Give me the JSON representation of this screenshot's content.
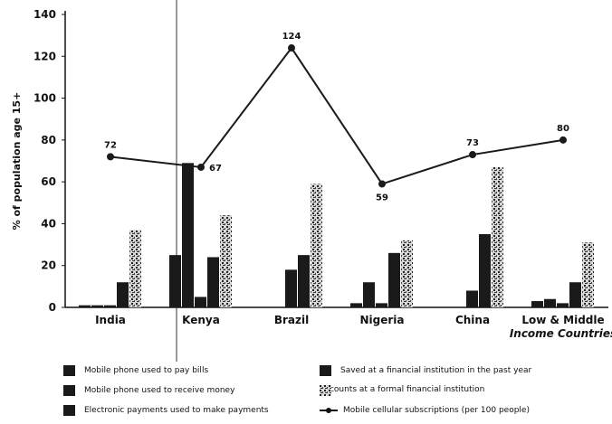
{
  "chart_data": {
    "type": "bar",
    "ylabel": "% of population age 15+",
    "ylim": [
      0,
      140
    ],
    "yticks": [
      0,
      20,
      40,
      60,
      80,
      100,
      120,
      140
    ],
    "grid": false,
    "categories": [
      "India",
      "Kenya",
      "Brazil",
      "Nigeria",
      "China",
      "Low & Middle\nIncome Countries"
    ],
    "series": [
      {
        "name": "Mobile phone used to pay bills",
        "kind": "bar",
        "color": "#1a1a1a",
        "values": [
          1,
          25,
          0,
          2,
          0,
          3
        ]
      },
      {
        "name": "Mobile phone used to receive money",
        "kind": "bar",
        "color": "#1a1a1a",
        "values": [
          1,
          69,
          0,
          12,
          0,
          4
        ]
      },
      {
        "name": "Electronic payments used to make payments",
        "kind": "bar",
        "color": "#1a1a1a",
        "values": [
          1,
          5,
          18,
          2,
          8,
          2
        ]
      },
      {
        "name": "Saved at a financial institution in the past year",
        "kind": "bar",
        "color": "#1a1a1a",
        "values": [
          12,
          24,
          25,
          26,
          35,
          12
        ]
      },
      {
        "name": "Accounts at a formal financial institution",
        "kind": "bar",
        "color": "#9a9a9a",
        "pattern": "speckle",
        "values": [
          37,
          44,
          59,
          32,
          67,
          31
        ]
      },
      {
        "name": "Mobile cellular subscriptions (per 100 people)",
        "kind": "line",
        "color": "#1a1a1a",
        "values": [
          72,
          67,
          124,
          59,
          73,
          80
        ]
      }
    ]
  }
}
